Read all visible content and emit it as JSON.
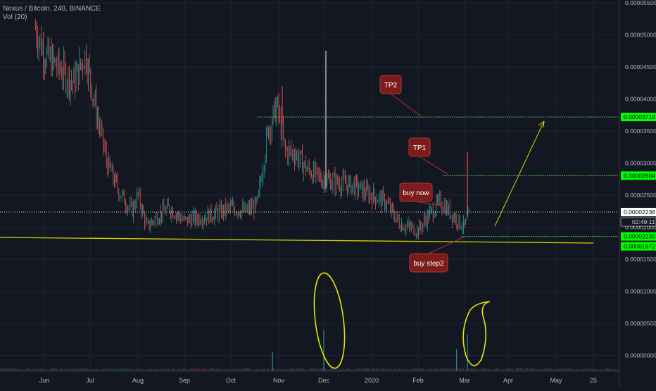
{
  "header": {
    "symbol_line": "Nexus / Bitcoin, 240, BINANCE",
    "volume_label": "Vol (20)"
  },
  "chart_data": {
    "type": "candlestick",
    "price_axis": {
      "ticks": [
        "0.00005500",
        "0.00005000",
        "0.00004500",
        "0.00004000",
        "0.00003500",
        "0.00003000",
        "0.00002500",
        "0.00002000",
        "0.00001500",
        "0.00001000",
        "0.00000500",
        "0.00000000"
      ],
      "tick_values": [
        5.5e-05,
        5e-05,
        4.5e-05,
        4e-05,
        3.5e-05,
        3e-05,
        2.5e-05,
        2e-05,
        1.5e-05,
        1e-05,
        5e-06,
        0.0
      ]
    },
    "time_axis": {
      "ticks": [
        "Jun",
        "Jul",
        "Aug",
        "Sep",
        "Oct",
        "Nov",
        "Dec",
        "2020",
        "Feb",
        "Mar",
        "Apr",
        "May",
        "25"
      ]
    },
    "price_path": [
      [
        "May 26",
        5.1e-05
      ],
      [
        "Jun 1",
        4.7e-05
      ],
      [
        "Jun 10",
        4.5e-05
      ],
      [
        "Jun 20",
        4.25e-05
      ],
      [
        "Jun 28",
        4.7e-05
      ],
      [
        "Jul 5",
        3.8e-05
      ],
      [
        "Jul 12",
        3e-05
      ],
      [
        "Jul 20",
        2.55e-05
      ],
      [
        "Jul 28",
        2.25e-05
      ],
      [
        "Aug 1",
        2.5e-05
      ],
      [
        "Aug 7",
        2e-05
      ],
      [
        "Aug 15",
        2.2e-05
      ],
      [
        "Aug 22",
        2.3e-05
      ],
      [
        "Sep 1",
        2.1e-05
      ],
      [
        "Sep 10",
        2.15e-05
      ],
      [
        "Sep 20",
        2.2e-05
      ],
      [
        "Oct 1",
        2.3e-05
      ],
      [
        "Oct 10",
        2.25e-05
      ],
      [
        "Oct 18",
        2.35e-05
      ],
      [
        "Oct 25",
        3.5e-05
      ],
      [
        "Oct 31",
        3.9e-05
      ],
      [
        "Nov 5",
        3.2e-05
      ],
      [
        "Nov 12",
        3.15e-05
      ],
      [
        "Nov 20",
        2.9e-05
      ],
      [
        "Nov 30",
        2.75e-05
      ],
      [
        "Dec 10",
        2.7e-05
      ],
      [
        "Dec 20",
        2.65e-05
      ],
      [
        "Jan 1",
        2.5e-05
      ],
      [
        "Jan 10",
        2.4e-05
      ],
      [
        "Jan 20",
        2.05e-05
      ],
      [
        "Feb 1",
        1.95e-05
      ],
      [
        "Feb 8",
        2.2e-05
      ],
      [
        "Feb 15",
        2.4e-05
      ],
      [
        "Feb 22",
        2.2e-05
      ],
      [
        "Mar 1",
        2e-05
      ],
      [
        "Mar 5",
        2.24e-05
      ]
    ],
    "volume_spikes": [
      {
        "date": "Dec 1",
        "value": 4e-06
      },
      {
        "date": "Mar 3",
        "value": 3.3e-06
      },
      {
        "date": "Feb 25",
        "value": 1e-06
      },
      {
        "date": "Oct 28",
        "value": 6e-07
      }
    ],
    "price_labels": {
      "tp2": {
        "value": 3.719e-05,
        "text": "0.00003719",
        "color": "#00ff00"
      },
      "tp1": {
        "value": 2.804e-05,
        "text": "0.00002804",
        "color": "#00ff00"
      },
      "current": {
        "value": 2.236e-05,
        "text": "0.00002236",
        "color": "#ffffff"
      },
      "countdown": {
        "text": "02:49:11"
      },
      "buy_now": {
        "value": 2.23e-05,
        "text": "0.00002230",
        "color": "#00ff00"
      },
      "buy_step2": {
        "value": 1.872e-05,
        "text": "0.00001872",
        "color": "#00ff00"
      }
    },
    "annotations": {
      "tp2": "TP2",
      "tp1": "TP1",
      "buy_now": "buy now",
      "buy_step2": "buy step2"
    },
    "colors": {
      "background": "#131722",
      "up_candle": "#26a69a",
      "down_candle": "#ef5350",
      "target_line": "#4caf50",
      "support_line": "#d4d400",
      "callout": "#7b1c1c"
    }
  }
}
